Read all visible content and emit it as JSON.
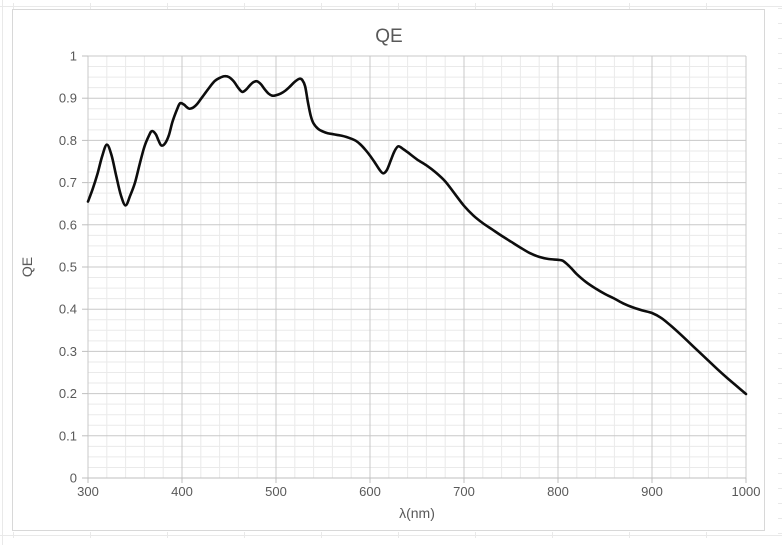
{
  "chart": {
    "title": "QE",
    "x_axis": {
      "label": "λ(nm)",
      "min": 300,
      "max": 1000,
      "major_step": 100,
      "minor_step": 20,
      "tick_labels": [
        "300",
        "400",
        "500",
        "600",
        "700",
        "800",
        "900",
        "1000"
      ]
    },
    "y_axis": {
      "label": "QE",
      "min": 0,
      "max": 1,
      "major_step": 0.1,
      "minor_step": 0.025,
      "tick_labels": [
        "0",
        "0.1",
        "0.2",
        "0.3",
        "0.4",
        "0.5",
        "0.6",
        "0.7",
        "0.8",
        "0.9",
        "1"
      ]
    }
  },
  "chart_data": {
    "type": "line",
    "title": "QE",
    "xlabel": "λ(nm)",
    "ylabel": "QE",
    "xlim": [
      300,
      1000
    ],
    "ylim": [
      0,
      1
    ],
    "grid": "major+minor",
    "legend": "none",
    "series": [
      {
        "name": "QE",
        "color": "#0d0d0d",
        "points": [
          [
            300,
            0.655
          ],
          [
            305,
            0.685
          ],
          [
            310,
            0.72
          ],
          [
            315,
            0.762
          ],
          [
            320,
            0.79
          ],
          [
            325,
            0.765
          ],
          [
            330,
            0.716
          ],
          [
            335,
            0.67
          ],
          [
            340,
            0.646
          ],
          [
            345,
            0.67
          ],
          [
            350,
            0.7
          ],
          [
            355,
            0.744
          ],
          [
            360,
            0.785
          ],
          [
            365,
            0.812
          ],
          [
            368,
            0.822
          ],
          [
            372,
            0.815
          ],
          [
            375,
            0.8
          ],
          [
            378,
            0.788
          ],
          [
            382,
            0.793
          ],
          [
            386,
            0.812
          ],
          [
            390,
            0.845
          ],
          [
            395,
            0.875
          ],
          [
            398,
            0.888
          ],
          [
            402,
            0.885
          ],
          [
            405,
            0.879
          ],
          [
            408,
            0.875
          ],
          [
            412,
            0.878
          ],
          [
            416,
            0.886
          ],
          [
            420,
            0.898
          ],
          [
            425,
            0.913
          ],
          [
            430,
            0.928
          ],
          [
            435,
            0.941
          ],
          [
            440,
            0.948
          ],
          [
            445,
            0.952
          ],
          [
            450,
            0.95
          ],
          [
            455,
            0.94
          ],
          [
            460,
            0.924
          ],
          [
            464,
            0.915
          ],
          [
            468,
            0.92
          ],
          [
            472,
            0.93
          ],
          [
            476,
            0.938
          ],
          [
            480,
            0.94
          ],
          [
            484,
            0.933
          ],
          [
            488,
            0.921
          ],
          [
            492,
            0.911
          ],
          [
            496,
            0.906
          ],
          [
            500,
            0.907
          ],
          [
            505,
            0.911
          ],
          [
            510,
            0.918
          ],
          [
            515,
            0.928
          ],
          [
            520,
            0.939
          ],
          [
            525,
            0.946
          ],
          [
            528,
            0.943
          ],
          [
            531,
            0.928
          ],
          [
            534,
            0.89
          ],
          [
            537,
            0.858
          ],
          [
            540,
            0.84
          ],
          [
            545,
            0.827
          ],
          [
            550,
            0.821
          ],
          [
            555,
            0.817
          ],
          [
            560,
            0.815
          ],
          [
            565,
            0.813
          ],
          [
            570,
            0.811
          ],
          [
            575,
            0.808
          ],
          [
            580,
            0.804
          ],
          [
            585,
            0.799
          ],
          [
            590,
            0.79
          ],
          [
            595,
            0.778
          ],
          [
            600,
            0.764
          ],
          [
            605,
            0.748
          ],
          [
            610,
            0.731
          ],
          [
            614,
            0.722
          ],
          [
            618,
            0.73
          ],
          [
            622,
            0.752
          ],
          [
            626,
            0.774
          ],
          [
            630,
            0.786
          ],
          [
            635,
            0.78
          ],
          [
            640,
            0.772
          ],
          [
            650,
            0.755
          ],
          [
            660,
            0.741
          ],
          [
            670,
            0.724
          ],
          [
            680,
            0.703
          ],
          [
            690,
            0.674
          ],
          [
            700,
            0.645
          ],
          [
            710,
            0.622
          ],
          [
            720,
            0.604
          ],
          [
            730,
            0.589
          ],
          [
            740,
            0.574
          ],
          [
            750,
            0.56
          ],
          [
            760,
            0.546
          ],
          [
            770,
            0.533
          ],
          [
            780,
            0.524
          ],
          [
            790,
            0.519
          ],
          [
            800,
            0.517
          ],
          [
            805,
            0.515
          ],
          [
            810,
            0.506
          ],
          [
            815,
            0.495
          ],
          [
            820,
            0.483
          ],
          [
            830,
            0.464
          ],
          [
            840,
            0.449
          ],
          [
            850,
            0.436
          ],
          [
            860,
            0.425
          ],
          [
            870,
            0.413
          ],
          [
            880,
            0.404
          ],
          [
            890,
            0.397
          ],
          [
            900,
            0.391
          ],
          [
            910,
            0.379
          ],
          [
            920,
            0.361
          ],
          [
            930,
            0.341
          ],
          [
            940,
            0.32
          ],
          [
            950,
            0.299
          ],
          [
            960,
            0.278
          ],
          [
            970,
            0.257
          ],
          [
            980,
            0.237
          ],
          [
            990,
            0.218
          ],
          [
            1000,
            0.199
          ]
        ]
      }
    ]
  },
  "colors": {
    "minor_grid": "#eaeaea",
    "major_grid": "#c8c8c8",
    "axis": "#bfbfbf",
    "text": "#595959",
    "curve": "#0d0d0d",
    "chart_border": "#d8d8d8",
    "sheet_line": "#e9e9e9"
  }
}
